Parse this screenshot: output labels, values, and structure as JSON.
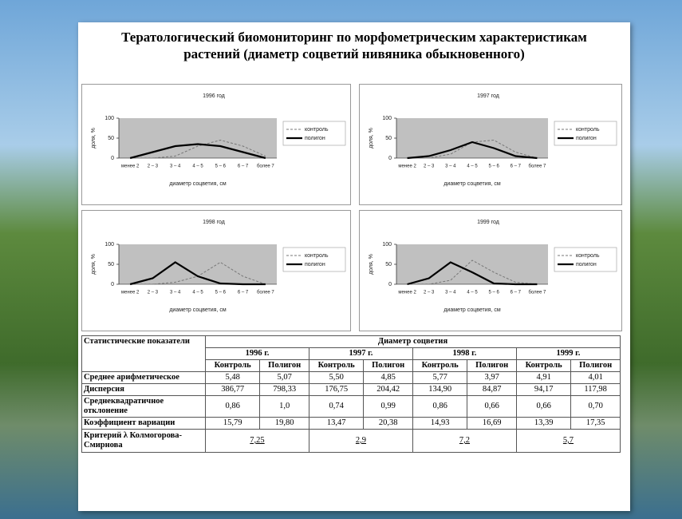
{
  "title": "Тератологический биомониторинг по морфометрическим характеристикам растений (диаметр соцветий нивяника обыкновенного)",
  "chart_data": [
    {
      "type": "line",
      "title": "1996 год",
      "x_label": "диаметр соцветия, см",
      "y_label": "доля, %",
      "categories": [
        "менее 2",
        "2 – 3",
        "3 – 4",
        "4 – 5",
        "5 – 6",
        "6 – 7",
        "более 7"
      ],
      "ylim": [
        0,
        100
      ],
      "yticks": [
        0,
        50,
        100
      ],
      "series": [
        {
          "name": "контроль",
          "color": "#777777",
          "dashed": true,
          "values": [
            0,
            0,
            5,
            30,
            45,
            30,
            5
          ]
        },
        {
          "name": "полигон",
          "color": "#000000",
          "dashed": false,
          "values": [
            0,
            15,
            30,
            35,
            30,
            15,
            0
          ]
        }
      ]
    },
    {
      "type": "line",
      "title": "1997 год",
      "x_label": "диаметр соцветия, см",
      "y_label": "доля, %",
      "categories": [
        "менее 2",
        "2 – 3",
        "3 – 4",
        "4 – 5",
        "5 – 6",
        "6 – 7",
        "более 7"
      ],
      "ylim": [
        0,
        100
      ],
      "yticks": [
        0,
        50,
        100
      ],
      "series": [
        {
          "name": "контроль",
          "color": "#777777",
          "dashed": true,
          "values": [
            0,
            0,
            10,
            40,
            45,
            15,
            0
          ]
        },
        {
          "name": "полигон",
          "color": "#000000",
          "dashed": false,
          "values": [
            0,
            5,
            20,
            40,
            25,
            5,
            0
          ]
        }
      ]
    },
    {
      "type": "line",
      "title": "1998 год",
      "x_label": "диаметр соцветия, см",
      "y_label": "доля, %",
      "categories": [
        "менее 2",
        "2 – 3",
        "3 – 4",
        "4 – 5",
        "5 – 6",
        "6 – 7",
        "более 7"
      ],
      "ylim": [
        0,
        100
      ],
      "yticks": [
        0,
        50,
        100
      ],
      "series": [
        {
          "name": "контроль",
          "color": "#777777",
          "dashed": true,
          "values": [
            0,
            0,
            5,
            20,
            55,
            20,
            0
          ]
        },
        {
          "name": "полигон",
          "color": "#000000",
          "dashed": false,
          "values": [
            0,
            15,
            55,
            20,
            2,
            0,
            0
          ]
        }
      ]
    },
    {
      "type": "line",
      "title": "1999 год",
      "x_label": "диаметр соцветия, см",
      "y_label": "доля, %",
      "categories": [
        "менее 2",
        "2 – 3",
        "3 – 4",
        "4 – 5",
        "5 – 6",
        "6 – 7",
        "более 7"
      ],
      "ylim": [
        0,
        100
      ],
      "yticks": [
        0,
        50,
        100
      ],
      "series": [
        {
          "name": "контроль",
          "color": "#777777",
          "dashed": true,
          "values": [
            0,
            0,
            10,
            60,
            30,
            5,
            0
          ]
        },
        {
          "name": "полигон",
          "color": "#000000",
          "dashed": false,
          "values": [
            0,
            15,
            55,
            30,
            2,
            0,
            0
          ]
        }
      ]
    }
  ],
  "table": {
    "header": "Статистические показатели",
    "group_header": "Диаметр соцветия",
    "years": [
      "1996 г.",
      "1997 г.",
      "1998 г.",
      "1999 г."
    ],
    "subheaders": [
      "Контроль",
      "Полигон",
      "Контроль",
      "Полигон",
      "Контроль",
      "Полигон",
      "Контроль",
      "Полигон"
    ],
    "rows": [
      {
        "label": "Среднее арифметическое",
        "cells": [
          "5,48",
          "5,07",
          "5,50",
          "4,85",
          "5,77",
          "3,97",
          "4,91",
          "4,01"
        ]
      },
      {
        "label": "Дисперсия",
        "cells": [
          "386,77",
          "798,33",
          "176,75",
          "204,42",
          "134,90",
          "84,87",
          "94,17",
          "117,98"
        ]
      },
      {
        "label": "Среднеквадратичное отклонение",
        "cells": [
          "0,86",
          "1,0",
          "0,74",
          "0,99",
          "0,86",
          "0,66",
          "0,66",
          "0,70"
        ]
      },
      {
        "label": "Коэффициент вариации",
        "cells": [
          "15,79",
          "19,80",
          "13,47",
          "20,38",
          "14,93",
          "16,69",
          "13,39",
          "17,35"
        ]
      },
      {
        "label": "Критерий λ Колмогорова-Смирнова",
        "cells": [
          "7,25",
          "2,9",
          "7,2",
          "5,7"
        ]
      }
    ]
  }
}
